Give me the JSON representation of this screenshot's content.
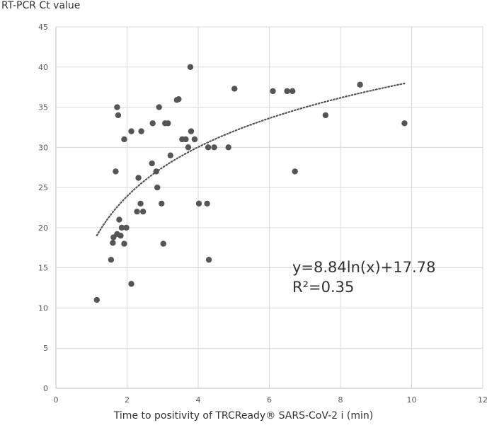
{
  "chart_data": {
    "type": "scatter",
    "ylabel": "RT-PCR Ct value",
    "xlabel": "Time to positivity of TRCReady® SARS-CoV-2 i (min)",
    "xlim": [
      0,
      12
    ],
    "ylim": [
      0,
      45
    ],
    "x_ticks": [
      0,
      2,
      4,
      6,
      8,
      10,
      12
    ],
    "y_ticks": [
      0,
      5,
      10,
      15,
      20,
      25,
      30,
      35,
      40,
      45
    ],
    "grid": "vertical and horizontal major gridlines",
    "trendline": {
      "type": "logarithmic",
      "a": 8.84,
      "b": 17.78,
      "x_range": [
        1.15,
        9.8
      ],
      "style": "dotted",
      "equation_label": "y=8.84ln(x)+17.78",
      "r2_label": "R²=0.35"
    },
    "marker_color": "#555555",
    "trend_color": "#555555",
    "points": [
      {
        "x": 1.15,
        "y": 11
      },
      {
        "x": 1.55,
        "y": 16
      },
      {
        "x": 1.6,
        "y": 18.1
      },
      {
        "x": 1.62,
        "y": 18.8
      },
      {
        "x": 1.68,
        "y": 27
      },
      {
        "x": 1.72,
        "y": 19.2
      },
      {
        "x": 1.72,
        "y": 35
      },
      {
        "x": 1.75,
        "y": 34
      },
      {
        "x": 1.78,
        "y": 21
      },
      {
        "x": 1.82,
        "y": 19
      },
      {
        "x": 1.85,
        "y": 20
      },
      {
        "x": 1.92,
        "y": 18
      },
      {
        "x": 1.92,
        "y": 31
      },
      {
        "x": 1.98,
        "y": 20
      },
      {
        "x": 2.12,
        "y": 13
      },
      {
        "x": 2.12,
        "y": 32
      },
      {
        "x": 2.28,
        "y": 22
      },
      {
        "x": 2.32,
        "y": 26.2
      },
      {
        "x": 2.38,
        "y": 23
      },
      {
        "x": 2.4,
        "y": 32
      },
      {
        "x": 2.45,
        "y": 22
      },
      {
        "x": 2.7,
        "y": 28
      },
      {
        "x": 2.72,
        "y": 33
      },
      {
        "x": 2.82,
        "y": 27
      },
      {
        "x": 2.85,
        "y": 25
      },
      {
        "x": 2.9,
        "y": 35
      },
      {
        "x": 2.97,
        "y": 23
      },
      {
        "x": 3.02,
        "y": 18
      },
      {
        "x": 3.07,
        "y": 33
      },
      {
        "x": 3.15,
        "y": 33
      },
      {
        "x": 3.22,
        "y": 29
      },
      {
        "x": 3.4,
        "y": 35.9
      },
      {
        "x": 3.45,
        "y": 36
      },
      {
        "x": 3.55,
        "y": 31
      },
      {
        "x": 3.65,
        "y": 31
      },
      {
        "x": 3.72,
        "y": 30
      },
      {
        "x": 3.78,
        "y": 40
      },
      {
        "x": 3.8,
        "y": 32
      },
      {
        "x": 3.9,
        "y": 31
      },
      {
        "x": 4.02,
        "y": 23
      },
      {
        "x": 4.25,
        "y": 23
      },
      {
        "x": 4.28,
        "y": 30
      },
      {
        "x": 4.3,
        "y": 16
      },
      {
        "x": 4.45,
        "y": 30
      },
      {
        "x": 4.85,
        "y": 30
      },
      {
        "x": 5.02,
        "y": 37.3
      },
      {
        "x": 6.1,
        "y": 37
      },
      {
        "x": 6.5,
        "y": 37
      },
      {
        "x": 6.65,
        "y": 37
      },
      {
        "x": 6.72,
        "y": 27
      },
      {
        "x": 7.58,
        "y": 34
      },
      {
        "x": 8.55,
        "y": 37.8
      },
      {
        "x": 9.8,
        "y": 33
      }
    ]
  }
}
